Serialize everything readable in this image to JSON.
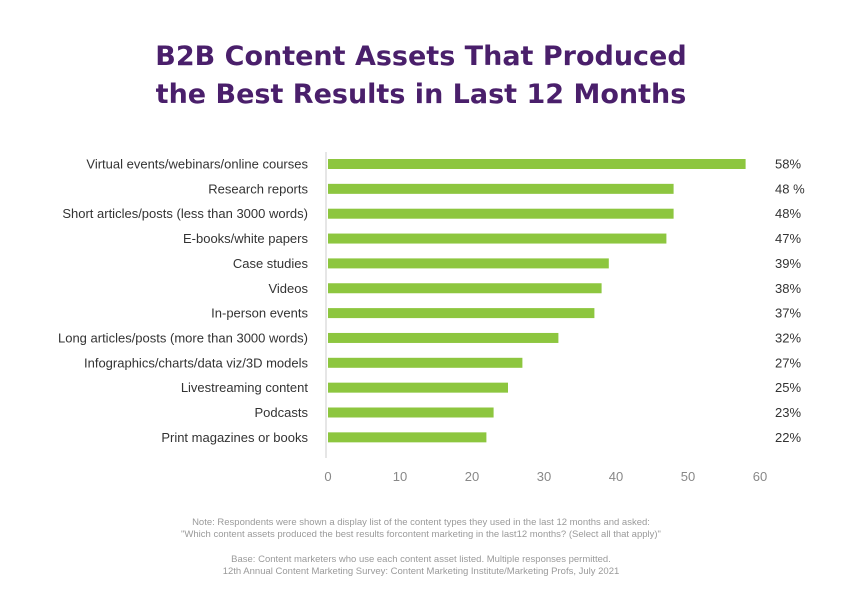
{
  "header": {
    "title_line1": "B2B Content Assets That Produced",
    "title_line2": "the Best Results in Last 12 Months"
  },
  "colors": {
    "title": "#4a1f6b",
    "bar": "#8dc63f",
    "axis": "#cccccc",
    "note": "#9a9a9a"
  },
  "chart_data": {
    "type": "bar",
    "orientation": "horizontal",
    "title": "B2B Content Assets That Produced the Best Results in Last 12 Months",
    "categories": [
      "Virtual events/webinars/online courses",
      "Research reports",
      "Short articles/posts (less than 3000 words)",
      "E-books/white papers",
      "Case studies",
      "Videos",
      "In-person events",
      "Long articles/posts (more than 3000 words)",
      "Infographics/charts/data viz/3D models",
      "Livestreaming content",
      "Podcasts",
      "Print magazines or books"
    ],
    "values": [
      58,
      48,
      48,
      47,
      39,
      38,
      37,
      32,
      27,
      25,
      23,
      22
    ],
    "value_labels": [
      "58%",
      "48 %",
      "48%",
      "47%",
      "39%",
      "38%",
      "37%",
      "32%",
      "27%",
      "25%",
      "23%",
      "22%"
    ],
    "xlim": [
      0,
      60
    ],
    "xticks": [
      "0",
      "10",
      "20",
      "30",
      "40",
      "50",
      "60"
    ],
    "grid": false
  },
  "footnotes": {
    "note_line1": "Note: Respondents were shown a display list of the content types they used in the last 12 months and asked:",
    "note_line2": "\"Which content assets produced the best results forcontent marketing in the last12 months? (Select all that apply)\"",
    "base_line1": "Base: Content marketers who use each content asset listed. Multiple responses permitted.",
    "base_line2": "12th Annual Content Marketing Survey: Content Marketing Institute/Marketing Profs, July 2021"
  }
}
